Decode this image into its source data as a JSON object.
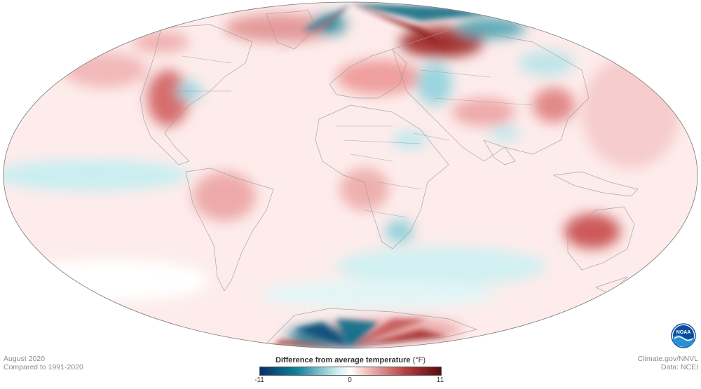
{
  "caption": {
    "date": "August 2020",
    "baseline": "Compared to 1991-2020"
  },
  "credits": {
    "source": "Climate.gov/NNVL",
    "data": "Data: NCEI"
  },
  "legend": {
    "title": "Difference from average temperature",
    "unit": "(°F)",
    "min_label": "-11",
    "mid_label": "0",
    "max_label": "11",
    "colors": [
      "#08306b",
      "#0e7e97",
      "#c7ecef",
      "#ffffff",
      "#f4c7c3",
      "#b5403f",
      "#5a0a0a"
    ]
  },
  "logo": {
    "name": "noaa-logo",
    "text": "NOAA",
    "colors": [
      "#0b4f9c",
      "#2a8fd6"
    ]
  },
  "map": {
    "projection": "Mollweide (global)",
    "variable": "temperature anomaly",
    "ocean_base_color": "#fdeceb",
    "land_outline_color": "#9a9a9a"
  }
}
